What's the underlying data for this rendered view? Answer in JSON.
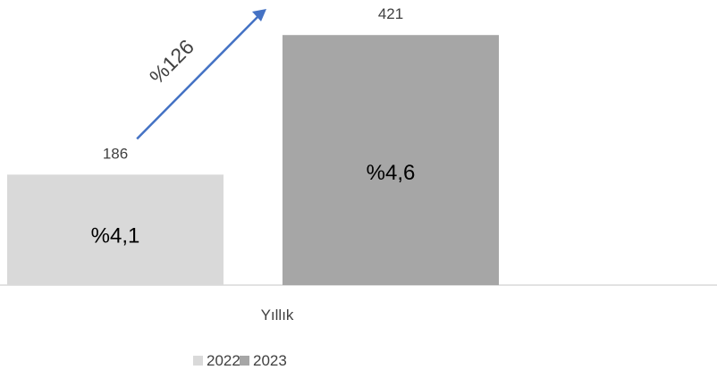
{
  "chart_data": {
    "type": "bar",
    "categories": [
      "Yıllık"
    ],
    "series": [
      {
        "name": "2022",
        "values": [
          186
        ],
        "inner_label": "%4,1",
        "color": "#d9d9d9"
      },
      {
        "name": "2023",
        "values": [
          421
        ],
        "inner_label": "%4,6",
        "color": "#a6a6a6"
      }
    ],
    "ylim": [
      0,
      480
    ],
    "grid": false,
    "legend": "bottom-center",
    "annotations": [
      {
        "type": "arrow",
        "from_series": "2022",
        "to_series": "2023",
        "label": "%126",
        "color": "#4472c4"
      }
    ],
    "axis_color": "#d9d9d9"
  }
}
